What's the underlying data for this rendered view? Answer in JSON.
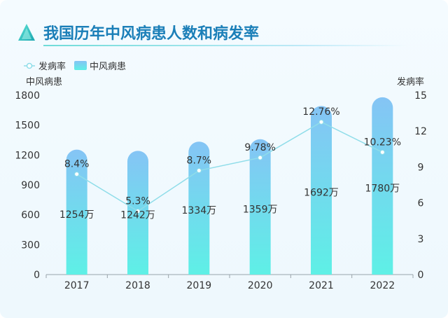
{
  "header": {
    "title": "我国历年中风病患人数和病发率"
  },
  "legend": {
    "rate_label": "发病率",
    "patients_label": "中风病患"
  },
  "colors": {
    "bar_top": "#85c4f5",
    "bar_bottom": "#5ef0e6",
    "line": "#8fdde9",
    "title": "#1b7fb8"
  },
  "chart_data": {
    "type": "bar",
    "title": "我国历年中风病患人数和病发率",
    "categories": [
      "2017",
      "2018",
      "2019",
      "2020",
      "2021",
      "2022"
    ],
    "ylabel": "中风病患",
    "ylabel_right": "发病率",
    "ylim": [
      0,
      1800
    ],
    "yticks": [
      0,
      300,
      600,
      900,
      1200,
      1500,
      1800
    ],
    "y2lim": [
      0,
      15
    ],
    "y2ticks": [
      0,
      3,
      6,
      9,
      12,
      15
    ],
    "legend_position": "top-left",
    "series": [
      {
        "name": "中风病患",
        "type": "bar",
        "axis": "left",
        "values": [
          1254,
          1242,
          1334,
          1359,
          1692,
          1780
        ],
        "labels": [
          "1254万",
          "1242万",
          "1334万",
          "1359万",
          "1692万",
          "1780万"
        ]
      },
      {
        "name": "发病率",
        "type": "line",
        "axis": "right",
        "values": [
          8.4,
          5.3,
          8.7,
          9.78,
          12.76,
          10.23
        ],
        "labels": [
          "8.4%",
          "5.3%",
          "8.7%",
          "9.78%",
          "12.76%",
          "10.23%"
        ]
      }
    ]
  }
}
